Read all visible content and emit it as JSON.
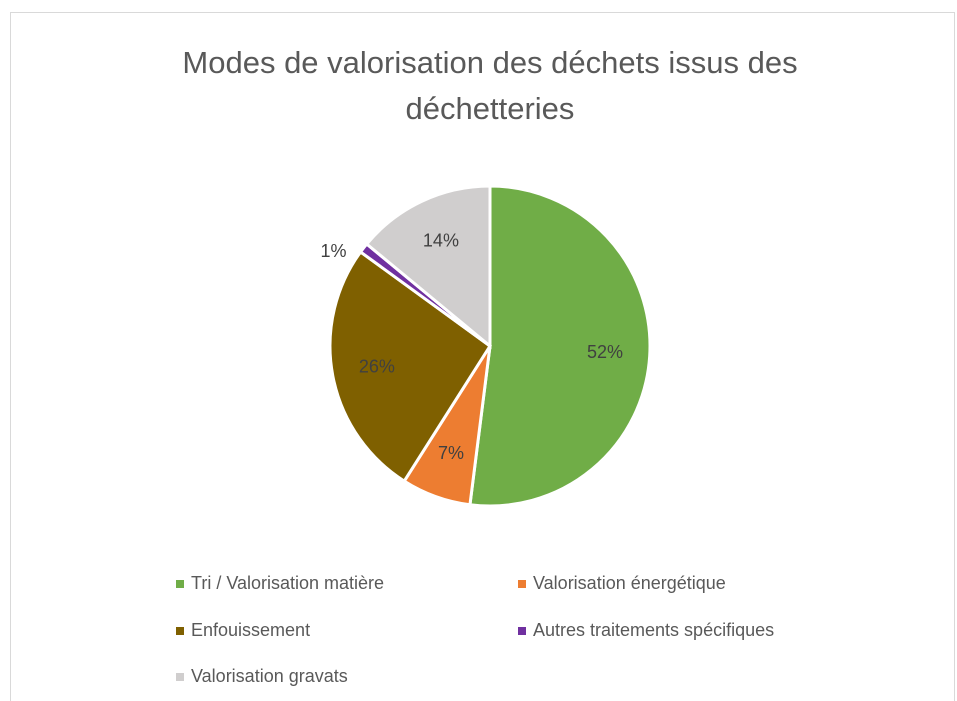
{
  "chart_data": {
    "type": "pie",
    "title": "Modes de valorisation des déchets issus des déchetteries",
    "categories": [
      "Tri / Valorisation matière",
      "Valorisation énergétique",
      "Enfouissement",
      "Autres traitements spécifiques",
      "Valorisation gravats"
    ],
    "values": [
      52,
      7,
      26,
      1,
      14
    ],
    "value_labels": [
      "52%",
      "7%",
      "26%",
      "1%",
      "14%"
    ],
    "colors": [
      "#70ad47",
      "#ed7d31",
      "#7f6000",
      "#7030a0",
      "#d0cece"
    ],
    "legend": "bottom"
  }
}
